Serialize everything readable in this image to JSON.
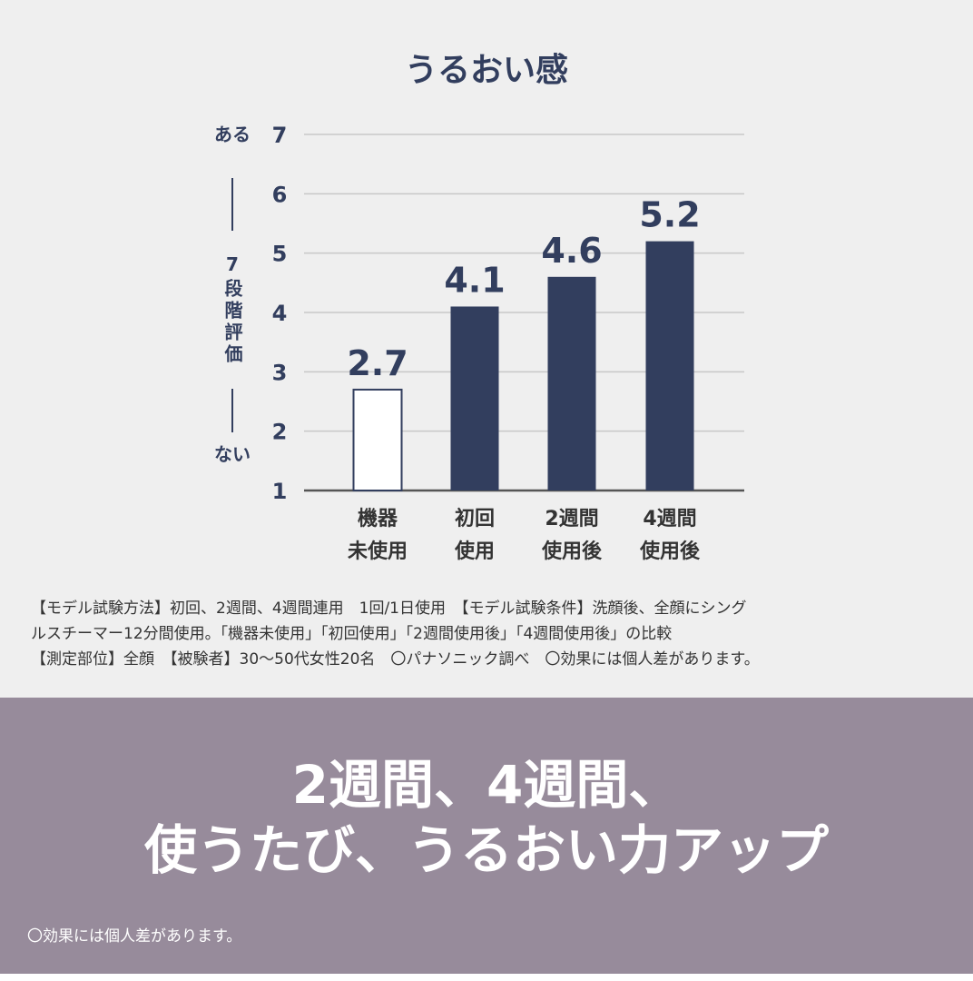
{
  "chart_data": {
    "type": "bar",
    "title": "うるおい感",
    "categories": [
      [
        "機器",
        "未使用"
      ],
      [
        "初回",
        "使用"
      ],
      [
        "2週間",
        "使用後"
      ],
      [
        "4週間",
        "使用後"
      ]
    ],
    "values": [
      2.7,
      4.1,
      4.6,
      5.2
    ],
    "data_labels": [
      "2.7",
      "4.1",
      "4.6",
      "5.2"
    ],
    "bar_colors": [
      "#ffffff",
      "#323e5e",
      "#323e5e",
      "#323e5e"
    ],
    "ylim": [
      1,
      7
    ],
    "yticks": [
      1,
      2,
      3,
      4,
      5,
      6,
      7
    ],
    "ylabel": {
      "top": "ある",
      "middle": "7段階評価",
      "bottom": "ない"
    },
    "grid": true,
    "accent_color": "#323e5e"
  },
  "notes": [
    "【モデル試験方法】初回、2週間、4週間連用　1回/1日使用　【モデル試験条件】洗顔後、全顔にシング",
    "ルスチーマー12分間使用。「機器未使用」「初回使用」「2週間使用後」「4週間使用後」の比較",
    "【測定部位】全顔　【被験者】30～50代女性20名　〇パナソニック調べ　〇効果には個人差があります。"
  ],
  "banner": {
    "lines": [
      "2週間、4週間、",
      "使うたび、うるおい力アップ"
    ],
    "note": "〇効果には個人差があります。",
    "background": "#978b9b"
  }
}
